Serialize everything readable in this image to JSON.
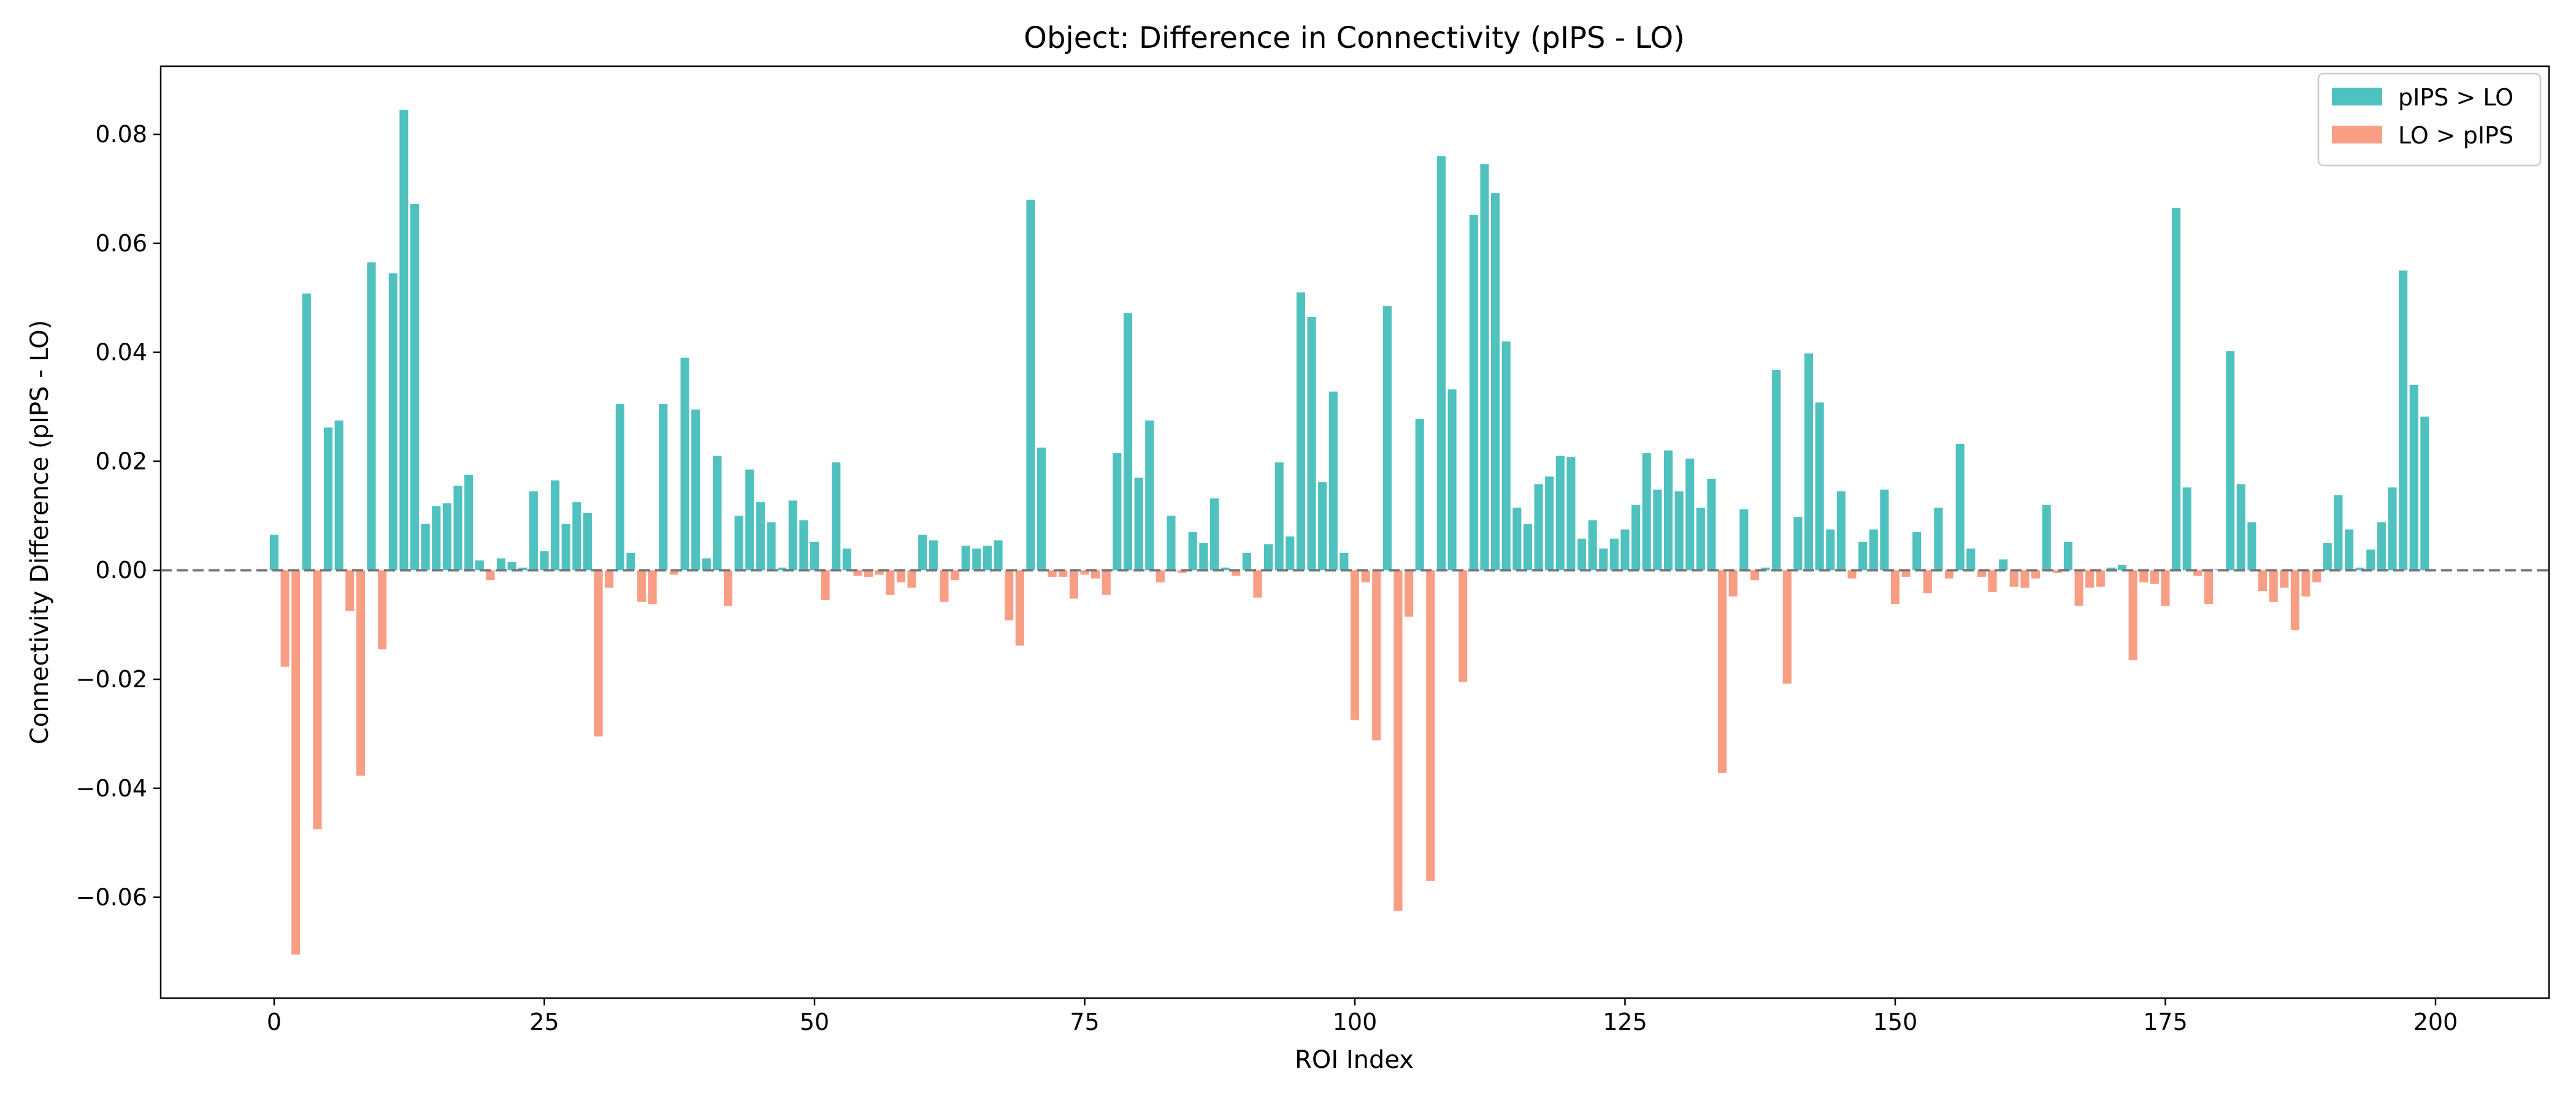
{
  "chart_data": {
    "type": "bar",
    "title": "Object: Difference in Connectivity (pIPS - LO)",
    "xlabel": "ROI Index",
    "ylabel": "Connectivity Difference (pIPS - LO)",
    "xlim": [
      -10.5,
      210.5
    ],
    "ylim": [
      -0.0785,
      0.0925
    ],
    "xticks": [
      0,
      25,
      50,
      75,
      100,
      125,
      150,
      175,
      200
    ],
    "xtick_labels": [
      "0",
      "25",
      "50",
      "75",
      "100",
      "125",
      "150",
      "175",
      "200"
    ],
    "yticks": [
      -0.06,
      -0.04,
      -0.02,
      0.0,
      0.02,
      0.04,
      0.06,
      0.08
    ],
    "ytick_labels": [
      "−0.06",
      "−0.04",
      "−0.02",
      "0.00",
      "0.02",
      "0.04",
      "0.06",
      "0.08"
    ],
    "reference_line": {
      "y": 0,
      "style": "dashed",
      "color": "#777777"
    },
    "grid": false,
    "legend_position": "top-right",
    "colors": {
      "positive": "#4fc1bf",
      "negative": "#f89e85"
    },
    "series": [
      {
        "name": "pIPS > LO",
        "color": "#4fc1bf",
        "rule": "value > 0"
      },
      {
        "name": "LO > pIPS",
        "color": "#f89e85",
        "rule": "value < 0"
      }
    ],
    "x": [
      0,
      1,
      2,
      3,
      4,
      5,
      6,
      7,
      8,
      9,
      10,
      11,
      12,
      13,
      14,
      15,
      16,
      17,
      18,
      19,
      20,
      21,
      22,
      23,
      24,
      25,
      26,
      27,
      28,
      29,
      30,
      31,
      32,
      33,
      34,
      35,
      36,
      37,
      38,
      39,
      40,
      41,
      42,
      43,
      44,
      45,
      46,
      47,
      48,
      49,
      50,
      51,
      52,
      53,
      54,
      55,
      56,
      57,
      58,
      59,
      60,
      61,
      62,
      63,
      64,
      65,
      66,
      67,
      68,
      69,
      70,
      71,
      72,
      73,
      74,
      75,
      76,
      77,
      78,
      79,
      80,
      81,
      82,
      83,
      84,
      85,
      86,
      87,
      88,
      89,
      90,
      91,
      92,
      93,
      94,
      95,
      96,
      97,
      98,
      99,
      100,
      101,
      102,
      103,
      104,
      105,
      106,
      107,
      108,
      109,
      110,
      111,
      112,
      113,
      114,
      115,
      116,
      117,
      118,
      119,
      120,
      121,
      122,
      123,
      124,
      125,
      126,
      127,
      128,
      129,
      130,
      131,
      132,
      133,
      134,
      135,
      136,
      137,
      138,
      139,
      140,
      141,
      142,
      143,
      144,
      145,
      146,
      147,
      148,
      149,
      150,
      151,
      152,
      153,
      154,
      155,
      156,
      157,
      158,
      159,
      160,
      161,
      162,
      163,
      164,
      165,
      166,
      167,
      168,
      169,
      170,
      171,
      172,
      173,
      174,
      175,
      176,
      177,
      178,
      179,
      180,
      181,
      182,
      183,
      184,
      185,
      186,
      187,
      188,
      189,
      190,
      191,
      192,
      193,
      194,
      195,
      196,
      197,
      198,
      199
    ],
    "values": [
      0.0065,
      -0.0177,
      -0.0705,
      0.0508,
      -0.0475,
      0.0262,
      0.0275,
      -0.0075,
      -0.0377,
      0.0565,
      -0.0145,
      0.0545,
      0.0845,
      0.0672,
      0.0085,
      0.0118,
      0.0123,
      0.0155,
      0.0175,
      0.0018,
      -0.0018,
      0.0022,
      0.0015,
      0.0005,
      0.0145,
      0.0035,
      0.0165,
      0.0085,
      0.0125,
      0.0105,
      -0.0305,
      -0.0032,
      0.0305,
      0.0032,
      -0.0058,
      -0.0062,
      0.0305,
      -0.0008,
      0.039,
      0.0295,
      0.0022,
      0.021,
      -0.0065,
      0.01,
      0.0185,
      0.0125,
      0.0088,
      0.0005,
      0.0128,
      0.0092,
      0.0052,
      -0.0055,
      0.0198,
      0.004,
      -0.001,
      -0.0012,
      -0.0008,
      -0.0045,
      -0.0022,
      -0.0032,
      0.0065,
      0.0055,
      -0.0058,
      -0.0018,
      0.0045,
      0.004,
      0.0045,
      0.0055,
      -0.0092,
      -0.0138,
      0.068,
      0.0225,
      -0.0012,
      -0.0012,
      -0.0052,
      -0.0008,
      -0.0015,
      -0.0045,
      0.0215,
      0.0472,
      0.017,
      0.0275,
      -0.0022,
      0.01,
      -0.0005,
      0.007,
      0.005,
      0.0132,
      0.0005,
      -0.001,
      0.0032,
      -0.005,
      0.0048,
      0.0198,
      0.0062,
      0.051,
      0.0465,
      0.0162,
      0.0328,
      0.0032,
      -0.0275,
      -0.0022,
      -0.0312,
      0.0485,
      -0.0625,
      -0.0085,
      0.0278,
      -0.057,
      0.076,
      0.0332,
      -0.0205,
      0.0652,
      0.0745,
      0.0692,
      0.042,
      0.0115,
      0.0085,
      0.0158,
      0.0172,
      0.021,
      0.0208,
      0.0058,
      0.0092,
      0.004,
      0.0058,
      0.0075,
      0.012,
      0.0215,
      0.0148,
      0.022,
      0.0145,
      0.0205,
      0.0115,
      0.0168,
      -0.0372,
      -0.0048,
      0.0112,
      -0.0018,
      0.0005,
      0.0368,
      -0.0208,
      0.0098,
      0.0398,
      0.0308,
      0.0075,
      0.0145,
      -0.0015,
      0.0052,
      0.0075,
      0.0148,
      -0.0062,
      -0.0012,
      0.007,
      -0.0042,
      0.0115,
      -0.0015,
      0.0232,
      0.004,
      -0.0012,
      -0.004,
      0.002,
      -0.003,
      -0.0032,
      -0.0015,
      0.012,
      -0.0005,
      0.0052,
      -0.0065,
      -0.0032,
      -0.003,
      0.0005,
      0.001,
      -0.0165,
      -0.0022,
      -0.0025,
      -0.0065,
      0.0665,
      0.0152,
      -0.001,
      -0.0062,
      0.0002,
      0.0402,
      0.0158,
      0.0088,
      -0.0038,
      -0.0058,
      -0.0032,
      -0.011,
      -0.0048,
      -0.0022,
      0.005,
      0.0138,
      0.0075,
      0.0005,
      0.0038,
      0.0088,
      0.0152,
      0.055,
      0.034,
      0.0282
    ]
  }
}
